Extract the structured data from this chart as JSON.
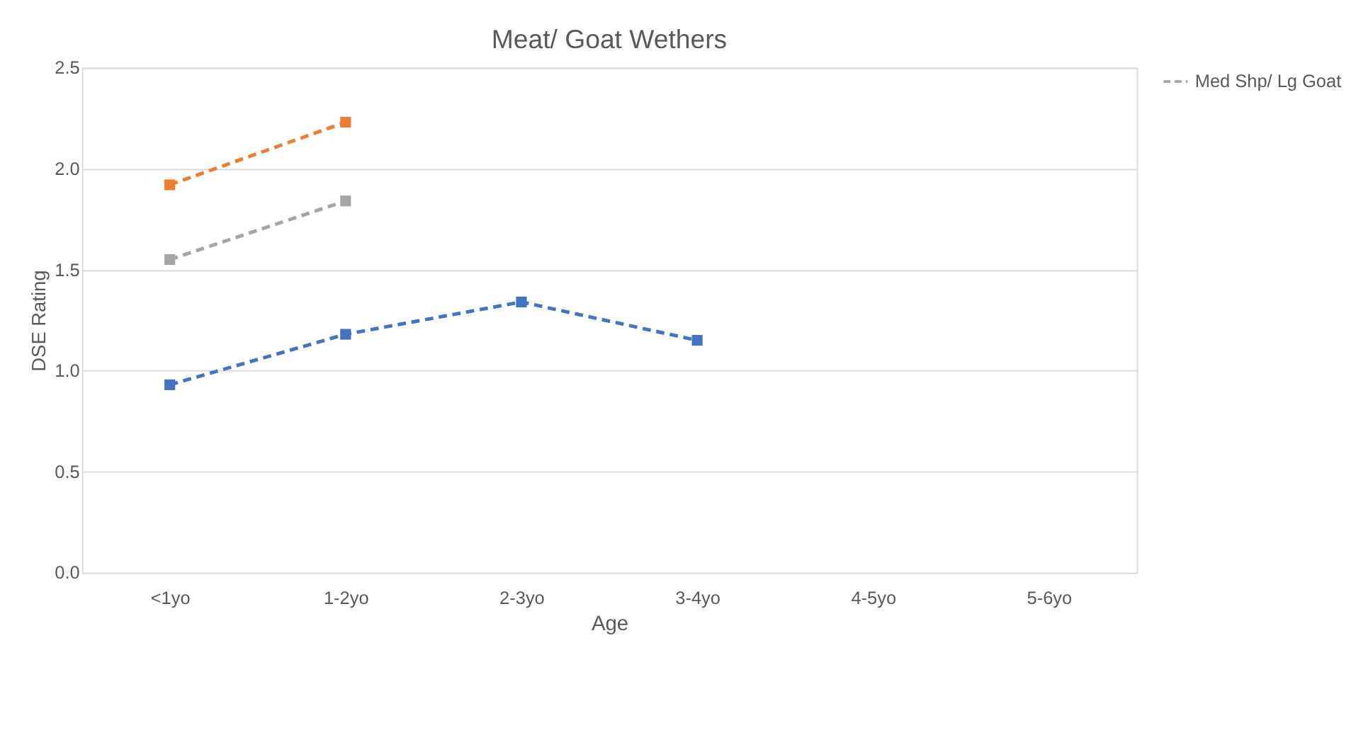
{
  "chart_data": {
    "type": "line",
    "title": "Meat/ Goat Wethers",
    "xlabel": "Age",
    "ylabel": "DSE Rating",
    "categories": [
      "<1yo",
      "1-2yo",
      "2-3yo",
      "3-4yo",
      "4-5yo",
      "5-6yo"
    ],
    "series": [
      {
        "color": "#ed7d31",
        "values": [
          1.92,
          2.23,
          null,
          null,
          null,
          null
        ]
      },
      {
        "name": "Med Shp/ Lg Goat",
        "color": "#a5a5a5",
        "values": [
          1.55,
          1.84,
          null,
          null,
          null,
          null
        ]
      },
      {
        "color": "#4472c4",
        "values": [
          0.93,
          1.18,
          1.34,
          1.15,
          null,
          null
        ]
      }
    ],
    "ylim": [
      0,
      2.5
    ],
    "yticks": [
      {
        "value": 0,
        "label": "0.0"
      },
      0.5,
      {
        "value": 1,
        "label": "1.0"
      },
      1.5,
      {
        "value": 2,
        "label": "2.0"
      },
      2.5
    ],
    "grid": "y",
    "legend": "right",
    "marker": "square",
    "line_style": "dashed"
  }
}
